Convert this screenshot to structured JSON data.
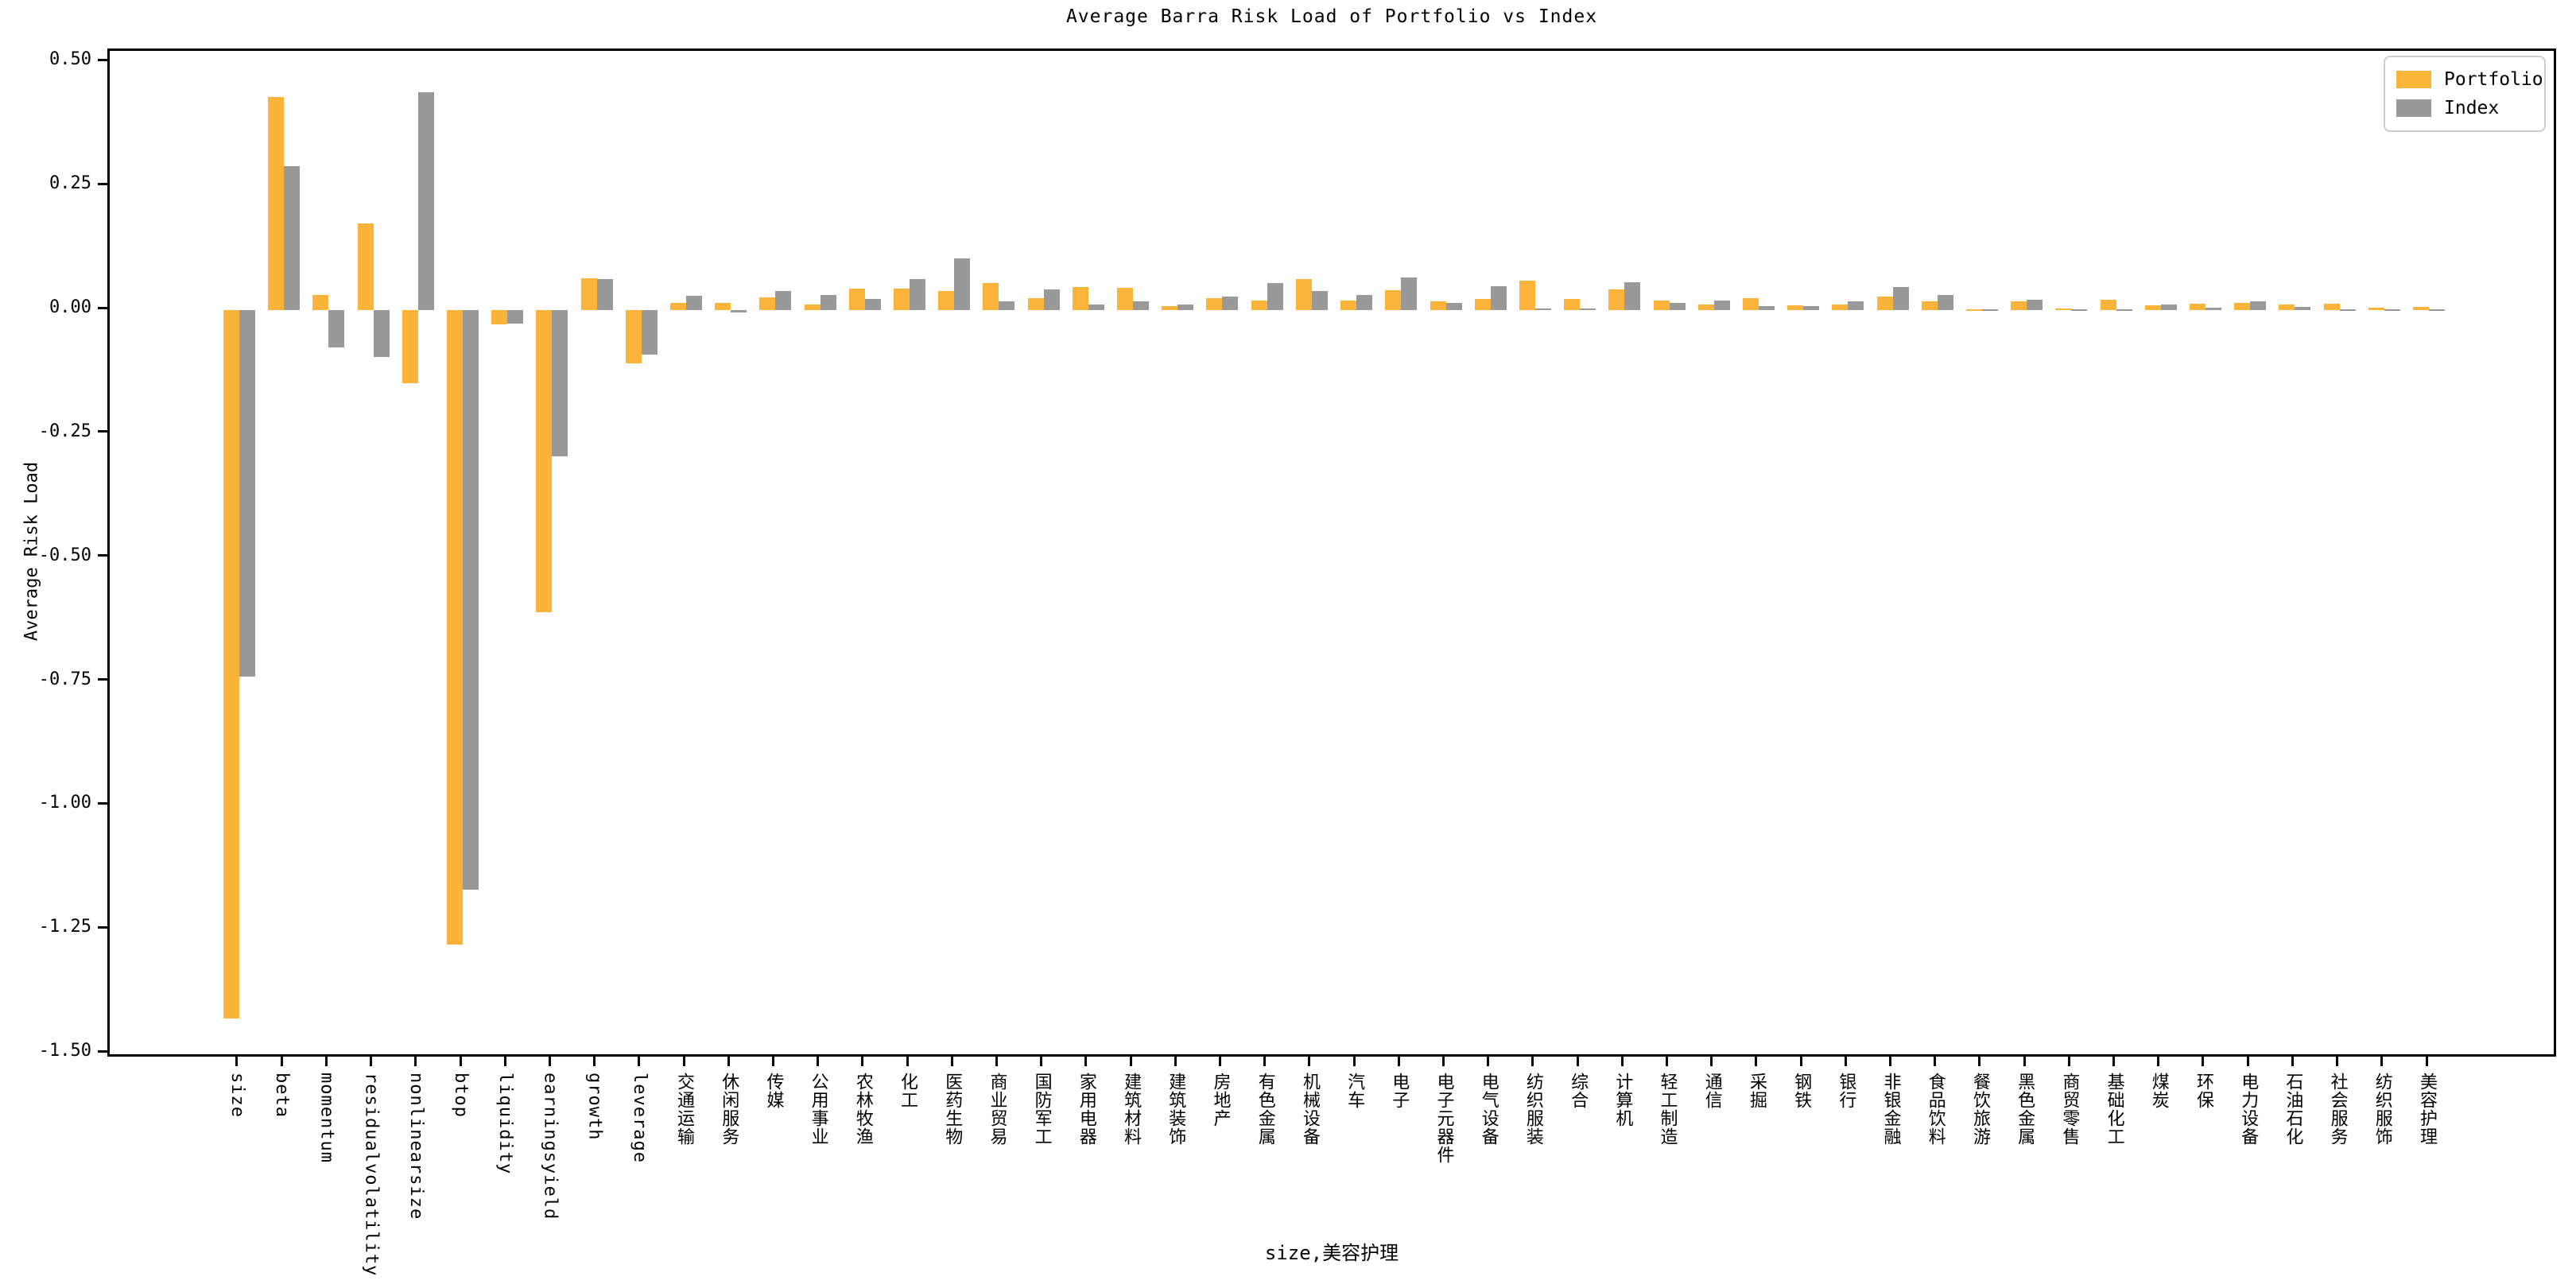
{
  "chart_data": {
    "type": "bar",
    "title": "Average Barra Risk Load of Portfolio vs Index",
    "xlabel": "size,美容护理",
    "ylabel": "Average Risk Load",
    "ylim": [
      -1.511,
      0.523
    ],
    "grid": false,
    "legend_position": "upper right",
    "ytick_labels": [
      "0.50",
      "0.25",
      "0.00",
      "-0.25",
      "-0.50",
      "-0.75",
      "-1.00",
      "-1.25",
      "-1.50"
    ],
    "ytick_values": [
      0.5,
      0.25,
      0.0,
      -0.25,
      -0.5,
      -0.75,
      -1.0,
      -1.25,
      -1.5
    ],
    "categories": [
      "size",
      "beta",
      "momentum",
      "residualvolatility",
      "nonlinearsize",
      "btop",
      "liquidity",
      "earningsyield",
      "growth",
      "leverage",
      "交通运输",
      "休闲服务",
      "传媒",
      "公用事业",
      "农林牧渔",
      "化工",
      "医药生物",
      "商业贸易",
      "国防军工",
      "家用电器",
      "建筑材料",
      "建筑装饰",
      "房地产",
      "有色金属",
      "机械设备",
      "汽车",
      "电子",
      "电子元器件",
      "电气设备",
      "纺织服装",
      "综合",
      "计算机",
      "轻工制造",
      "通信",
      "采掘",
      "钢铁",
      "银行",
      "非银金融",
      "食品饮料",
      "餐饮旅游",
      "黑色金属",
      "商贸零售",
      "基础化工",
      "煤炭",
      "环保",
      "电力设备",
      "石油石化",
      "社会服务",
      "纺织服饰",
      "美容护理"
    ],
    "series": [
      {
        "name": "Portfolio",
        "color": "#FCB33A",
        "values": [
          -1.43,
          0.43,
          0.03,
          0.175,
          -0.147,
          -1.28,
          -0.029,
          -0.61,
          0.064,
          -0.108,
          0.015,
          0.015,
          0.026,
          0.011,
          0.043,
          0.044,
          0.039,
          0.055,
          0.024,
          0.047,
          0.045,
          0.008,
          0.024,
          0.019,
          0.062,
          0.02,
          0.04,
          0.018,
          0.022,
          0.06,
          0.022,
          0.041,
          0.02,
          0.012,
          0.024,
          0.009,
          0.011,
          0.027,
          0.018,
          0.002,
          0.018,
          0.004,
          0.021,
          0.01,
          0.013,
          0.014,
          0.012,
          0.013,
          0.005,
          0.006
        ]
      },
      {
        "name": "Index",
        "color": "#999999",
        "values": [
          -0.74,
          0.29,
          -0.075,
          -0.095,
          0.44,
          -1.17,
          -0.027,
          -0.295,
          0.062,
          -0.089,
          0.029,
          -0.004,
          0.038,
          0.03,
          0.022,
          0.062,
          0.105,
          0.017,
          0.042,
          0.011,
          0.017,
          0.012,
          0.028,
          0.054,
          0.039,
          0.03,
          0.066,
          0.015,
          0.048,
          0.003,
          0.003,
          0.056,
          0.014,
          0.02,
          0.008,
          0.008,
          0.018,
          0.047,
          0.03,
          0.002,
          0.021,
          0.001,
          0.001,
          0.011,
          0.005,
          0.017,
          0.006,
          0.002,
          0.002,
          0.001
        ]
      }
    ]
  }
}
